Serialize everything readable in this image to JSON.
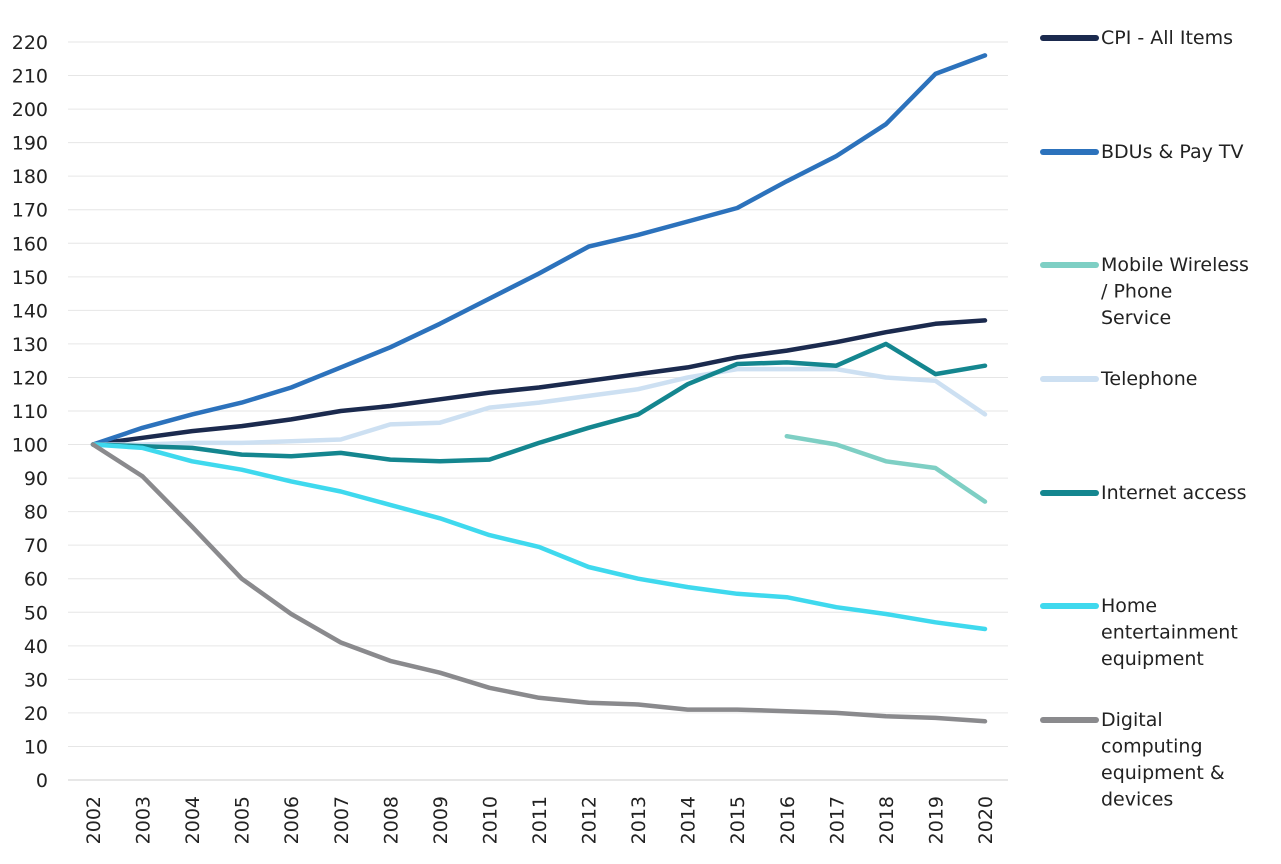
{
  "chart_data": {
    "type": "line",
    "title": "",
    "xlabel": "",
    "ylabel": "",
    "x": [
      "2002",
      "2003",
      "2004",
      "2005",
      "2006",
      "2007",
      "2008",
      "2009",
      "2010",
      "2011",
      "2012",
      "2013",
      "2014",
      "2015",
      "2016",
      "2017",
      "2018",
      "2019",
      "2020"
    ],
    "ylim": [
      0,
      220
    ],
    "yticks": [
      0,
      10,
      20,
      30,
      40,
      50,
      60,
      70,
      80,
      90,
      100,
      110,
      120,
      130,
      140,
      150,
      160,
      170,
      180,
      190,
      200,
      210,
      220
    ],
    "grid": "horizontal",
    "legend_position": "right",
    "series": [
      {
        "name": "CPI - All Items",
        "color": "#1b2a4e",
        "values": [
          100,
          102,
          104,
          105.5,
          107.5,
          110,
          111.5,
          113.5,
          115.5,
          117,
          119,
          121,
          123,
          126,
          128,
          130.5,
          133.5,
          136,
          137
        ]
      },
      {
        "name": "BDUs & Pay TV",
        "color": "#2c72bc",
        "values": [
          100,
          105,
          109,
          112.5,
          117,
          123,
          129,
          136,
          143.5,
          151,
          159,
          162.5,
          166.5,
          170.5,
          178.5,
          186,
          195.5,
          210.5,
          216
        ]
      },
      {
        "name": "Mobile Wireless / Phone Service",
        "color": "#7ecfc4",
        "values": [
          null,
          null,
          null,
          null,
          null,
          null,
          null,
          null,
          null,
          null,
          null,
          null,
          null,
          null,
          102.5,
          100,
          95,
          93,
          83
        ]
      },
      {
        "name": "Telephone",
        "color": "#cde0f2",
        "values": [
          100,
          100,
          100.5,
          100.5,
          101,
          101.5,
          106,
          106.5,
          111,
          112.5,
          114.5,
          116.5,
          120,
          122.5,
          122.5,
          122.5,
          120,
          119,
          109
        ]
      },
      {
        "name": "Internet access",
        "color": "#14868f",
        "values": [
          100,
          99.5,
          99,
          97,
          96.5,
          97.5,
          95.5,
          95,
          95.5,
          100.5,
          105,
          109,
          118,
          124,
          124.5,
          123.5,
          130,
          121,
          123.5
        ]
      },
      {
        "name": "Home entertainment equipment",
        "color": "#3fd9ee",
        "values": [
          100,
          99,
          95,
          92.5,
          89,
          86,
          82,
          78,
          73,
          69.5,
          63.5,
          60,
          57.5,
          55.5,
          54.5,
          51.5,
          49.5,
          47,
          45
        ]
      },
      {
        "name": "Digital computing equipment & devices",
        "color": "#8a8a8d",
        "values": [
          100,
          90.5,
          75.5,
          60,
          49.5,
          41,
          35.5,
          32,
          27.5,
          24.5,
          23,
          22.5,
          21,
          21,
          20.5,
          20,
          19,
          18.5,
          17.5
        ]
      }
    ]
  },
  "legend": [
    {
      "lines": [
        "CPI - All Items"
      ]
    },
    {
      "lines": [
        "BDUs & Pay TV"
      ]
    },
    {
      "lines": [
        "Mobile Wireless",
        "/ Phone",
        "Service"
      ]
    },
    {
      "lines": [
        "Telephone"
      ]
    },
    {
      "lines": [
        "Internet access"
      ]
    },
    {
      "lines": [
        "Home",
        "entertainment",
        "equipment"
      ]
    },
    {
      "lines": [
        "Digital",
        "computing",
        "equipment &",
        "devices"
      ]
    }
  ]
}
